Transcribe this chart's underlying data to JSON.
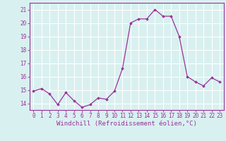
{
  "x": [
    0,
    1,
    2,
    3,
    4,
    5,
    6,
    7,
    8,
    9,
    10,
    11,
    12,
    13,
    14,
    15,
    16,
    17,
    18,
    19,
    20,
    21,
    22,
    23
  ],
  "y": [
    14.9,
    15.1,
    14.7,
    13.9,
    14.8,
    14.2,
    13.7,
    13.9,
    14.4,
    14.3,
    14.9,
    16.6,
    20.0,
    20.3,
    20.3,
    21.0,
    20.5,
    20.5,
    19.0,
    16.0,
    15.6,
    15.3,
    15.9,
    15.6
  ],
  "line_color": "#993399",
  "marker": "D",
  "marker_size": 1.8,
  "line_width": 0.9,
  "xlabel": "Windchill (Refroidissement éolien,°C)",
  "xlabel_fontsize": 6.5,
  "ylim": [
    13.5,
    21.5
  ],
  "yticks": [
    14,
    15,
    16,
    17,
    18,
    19,
    20,
    21
  ],
  "xticks": [
    0,
    1,
    2,
    3,
    4,
    5,
    6,
    7,
    8,
    9,
    10,
    11,
    12,
    13,
    14,
    15,
    16,
    17,
    18,
    19,
    20,
    21,
    22,
    23
  ],
  "tick_fontsize": 5.5,
  "background_color": "#d9f0f0",
  "grid_color": "#ffffff",
  "grid_linewidth": 0.8,
  "spine_color": "#993399",
  "spine_linewidth": 0.8
}
